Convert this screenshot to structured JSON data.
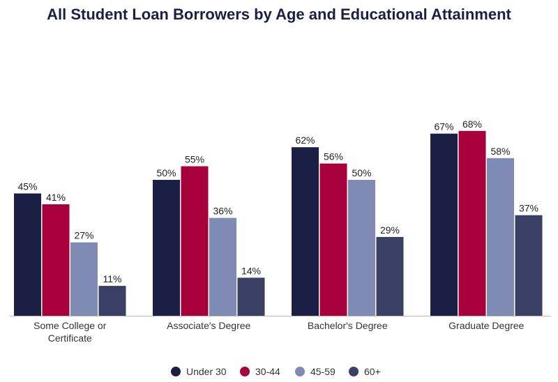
{
  "chart_data": {
    "type": "bar",
    "title": "All Student Loan Borrowers by Age and Educational Attainment",
    "categories": [
      [
        "Some College or",
        "Certificate"
      ],
      [
        "Associate's Degree"
      ],
      [
        "Bachelor's Degree"
      ],
      [
        "Graduate Degree"
      ]
    ],
    "series": [
      {
        "name": "Under 30",
        "color": "#1b1f44",
        "values": [
          45,
          50,
          62,
          67
        ]
      },
      {
        "name": "30-44",
        "color": "#a8003b",
        "values": [
          41,
          55,
          56,
          68
        ]
      },
      {
        "name": "45-59",
        "color": "#7f8bb5",
        "values": [
          27,
          36,
          50,
          58
        ]
      },
      {
        "name": "60+",
        "color": "#3a4064",
        "values": [
          11,
          14,
          29,
          37
        ]
      }
    ],
    "value_suffix": "%",
    "ylim": [
      0,
      70
    ],
    "grid": false,
    "legend_position": "bottom"
  }
}
